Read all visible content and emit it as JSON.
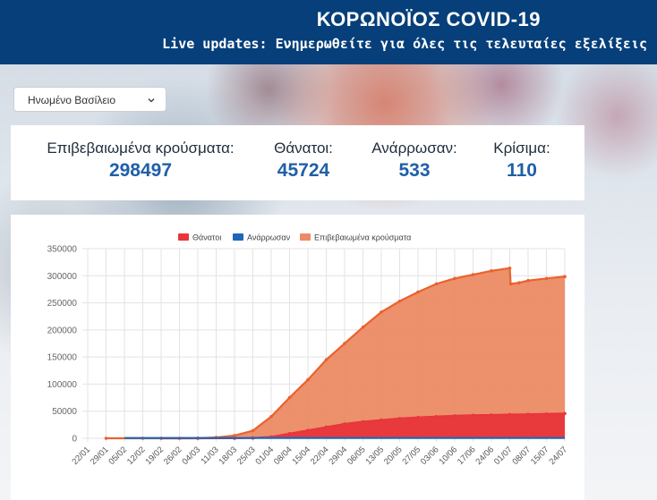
{
  "header": {
    "title": "ΚΟΡΩΝΟΪΟΣ COVID-19",
    "subtitle": "Live updates: Ενημερωθείτε για όλες τις τελευταίες εξελίξεις",
    "background_color": "#063f7a"
  },
  "country_select": {
    "selected": "Ηνωμένο Βασίλειο",
    "icon": "chevron-down-icon"
  },
  "stats": [
    {
      "id": "confirmed",
      "label": "Επιβεβαιωμένα κρούσματα:",
      "value": "298497"
    },
    {
      "id": "deaths",
      "label": "Θάνατοι:",
      "value": "45724"
    },
    {
      "id": "recovered",
      "label": "Ανάρρωσαν:",
      "value": "533"
    },
    {
      "id": "critical",
      "label": "Κρίσιμα:",
      "value": "110"
    }
  ],
  "chart_data": {
    "type": "area",
    "title": "",
    "xlabel": "",
    "ylabel": "",
    "ylim": [
      0,
      350000
    ],
    "y_ticks": [
      "0",
      "50000",
      "100000",
      "150000",
      "200000",
      "250000",
      "300000",
      "350000"
    ],
    "x_ticks": [
      "22/01",
      "29/01",
      "05/02",
      "12/02",
      "19/02",
      "26/02",
      "04/03",
      "11/03",
      "18/03",
      "25/03",
      "01/04",
      "08/04",
      "15/04",
      "22/04",
      "29/04",
      "06/05",
      "13/05",
      "20/05",
      "27/05",
      "03/06",
      "10/06",
      "17/06",
      "24/06",
      "01/07",
      "08/07",
      "15/07",
      "24/07"
    ],
    "grid": true,
    "legend_position": "top",
    "series": [
      {
        "name": "Θάνατοι",
        "color": "#e8363b",
        "line_color": "#e8363b",
        "x": [
          4,
          6,
          8,
          9,
          10,
          11,
          12,
          13,
          14,
          15,
          16,
          17,
          18,
          19,
          20,
          21,
          22,
          23,
          24,
          25,
          26
        ],
        "values": [
          0,
          0,
          100,
          500,
          2500,
          8500,
          14500,
          20500,
          26500,
          30500,
          33500,
          36500,
          38500,
          40000,
          41500,
          42500,
          43000,
          43800,
          44200,
          45000,
          45724
        ]
      },
      {
        "name": "Ανάρρωσαν",
        "color": "#1f66b8",
        "line_color": "#1f66b8",
        "x": [
          2,
          26
        ],
        "values": [
          533,
          533
        ]
      },
      {
        "name": "Επιβεβαιωμένα κρούσματα",
        "color": "#ec8a64",
        "line_color": "#e9622d",
        "x": [
          1,
          3,
          5,
          6,
          7,
          8,
          9,
          10,
          11,
          12,
          13,
          14,
          15,
          16,
          17,
          18,
          19,
          20,
          21,
          22,
          23,
          23.05,
          23.5,
          24,
          25,
          26
        ],
        "values": [
          0,
          0,
          20,
          200,
          1500,
          5000,
          14000,
          40000,
          75000,
          108000,
          145000,
          175000,
          205000,
          233000,
          253000,
          270000,
          285000,
          295000,
          302000,
          309000,
          314000,
          285000,
          287000,
          291000,
          295000,
          298497
        ]
      }
    ]
  }
}
